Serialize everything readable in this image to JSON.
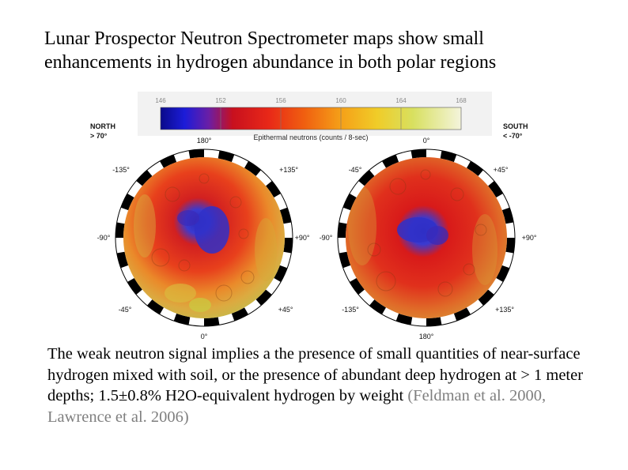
{
  "slide": {
    "title_line1": "Lunar Prospector Neutron Spectrometer maps show small",
    "title_line2": "enhancements in hydrogen abundance in both polar regions",
    "caption_main": "The weak neutron signal implies a the presence of small quantities of near-surface hydrogen mixed with soil, or the presence of abundant deep hydrogen at > 1 meter depths; 1.5±0.8% H2O-equivalent hydrogen by weight",
    "caption_citation": " (Feldman et al. 2000, Lawrence et al. 2006)"
  },
  "colorbar": {
    "ticks": [
      "146",
      "152",
      "156",
      "160",
      "164",
      "168"
    ],
    "label": "Epithermal neutrons (counts / 8-sec)"
  },
  "north": {
    "heading": "NORTH",
    "range": "> 70°",
    "top": "180°",
    "bottom": "0°",
    "left": "-90°",
    "right": "+90°",
    "upper_left": "-135°",
    "upper_right": "+135°",
    "lower_left": "-45°",
    "lower_right": "+45°"
  },
  "south": {
    "heading": "SOUTH",
    "range": "< -70°",
    "top": "0°",
    "bottom": "180°",
    "left": "-90°",
    "right": "+90°",
    "upper_left": "-45°",
    "upper_right": "+45°",
    "lower_left": "-135°",
    "lower_right": "+135°"
  },
  "colors": {
    "background": "#ffffff",
    "citation": "#7f7f7f"
  }
}
